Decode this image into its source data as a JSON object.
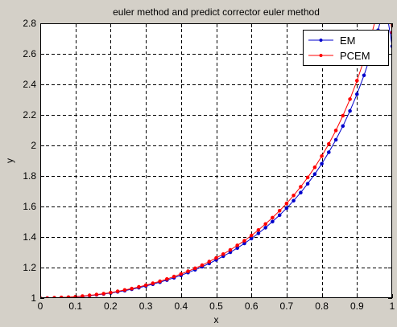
{
  "window": {
    "background": "#d4d0c8"
  },
  "chart_data": {
    "type": "line",
    "title": "euler method and predict corrector euler method",
    "xlabel": "x",
    "ylabel": "y",
    "xlim": [
      0,
      1
    ],
    "ylim": [
      1,
      2.8
    ],
    "xticks": [
      "0",
      "0.1",
      "0.2",
      "0.3",
      "0.4",
      "0.5",
      "0.6",
      "0.7",
      "0.8",
      "0.9",
      "1"
    ],
    "xtick_values": [
      0,
      0.1,
      0.2,
      0.3,
      0.4,
      0.5,
      0.6,
      0.7,
      0.8,
      0.9,
      1.0
    ],
    "yticks": [
      "1",
      "1.2",
      "1.4",
      "1.6",
      "1.8",
      "2",
      "2.2",
      "2.4",
      "2.6",
      "2.8"
    ],
    "ytick_values": [
      1,
      1.2,
      1.4,
      1.6,
      1.8,
      2.0,
      2.2,
      2.4,
      2.6,
      2.8
    ],
    "grid": true,
    "grid_style": "dashed",
    "legend_position": "top-right",
    "series": [
      {
        "name": "EM",
        "color": "#0000cc",
        "marker": "dot",
        "x": [
          0,
          0.02,
          0.04,
          0.06,
          0.08,
          0.1,
          0.12,
          0.14,
          0.16,
          0.18,
          0.2,
          0.22,
          0.24,
          0.26,
          0.28,
          0.3,
          0.32,
          0.34,
          0.36,
          0.38,
          0.4,
          0.42,
          0.44,
          0.46,
          0.48,
          0.5,
          0.52,
          0.54,
          0.56,
          0.58,
          0.6,
          0.62,
          0.64,
          0.66,
          0.68,
          0.7,
          0.72,
          0.74,
          0.76,
          0.78,
          0.8,
          0.82,
          0.84,
          0.86,
          0.88,
          0.9,
          0.92,
          0.94,
          0.96,
          0.98,
          1.0
        ],
        "y": [
          1.0,
          1.0,
          1.001,
          1.003,
          1.005,
          1.008,
          1.011,
          1.016,
          1.021,
          1.027,
          1.033,
          1.041,
          1.049,
          1.058,
          1.068,
          1.079,
          1.091,
          1.104,
          1.118,
          1.133,
          1.149,
          1.167,
          1.185,
          1.205,
          1.227,
          1.25,
          1.274,
          1.3,
          1.328,
          1.358,
          1.39,
          1.424,
          1.461,
          1.501,
          1.543,
          1.589,
          1.638,
          1.691,
          1.749,
          1.812,
          1.88,
          1.955,
          2.037,
          2.127,
          2.226,
          2.336,
          2.459,
          2.597,
          2.754,
          2.935,
          2.65
        ]
      },
      {
        "name": "PCEM",
        "color": "#ff0000",
        "marker": "dot",
        "x": [
          0,
          0.02,
          0.04,
          0.06,
          0.08,
          0.1,
          0.12,
          0.14,
          0.16,
          0.18,
          0.2,
          0.22,
          0.24,
          0.26,
          0.28,
          0.3,
          0.32,
          0.34,
          0.36,
          0.38,
          0.4,
          0.42,
          0.44,
          0.46,
          0.48,
          0.5,
          0.52,
          0.54,
          0.56,
          0.58,
          0.6,
          0.62,
          0.64,
          0.66,
          0.68,
          0.7,
          0.72,
          0.74,
          0.76,
          0.78,
          0.8,
          0.82,
          0.84,
          0.86,
          0.88,
          0.9,
          0.92,
          0.94,
          0.96,
          0.98,
          1.0
        ],
        "y": [
          1.0,
          1.0,
          1.002,
          1.004,
          1.006,
          1.009,
          1.013,
          1.018,
          1.023,
          1.029,
          1.036,
          1.044,
          1.053,
          1.062,
          1.073,
          1.084,
          1.097,
          1.11,
          1.125,
          1.141,
          1.158,
          1.176,
          1.195,
          1.216,
          1.239,
          1.263,
          1.288,
          1.316,
          1.345,
          1.376,
          1.41,
          1.446,
          1.485,
          1.527,
          1.572,
          1.62,
          1.672,
          1.729,
          1.79,
          1.857,
          1.93,
          2.01,
          2.098,
          2.195,
          2.303,
          2.424,
          2.56,
          2.714,
          2.89,
          3.093,
          2.74
        ]
      }
    ]
  }
}
